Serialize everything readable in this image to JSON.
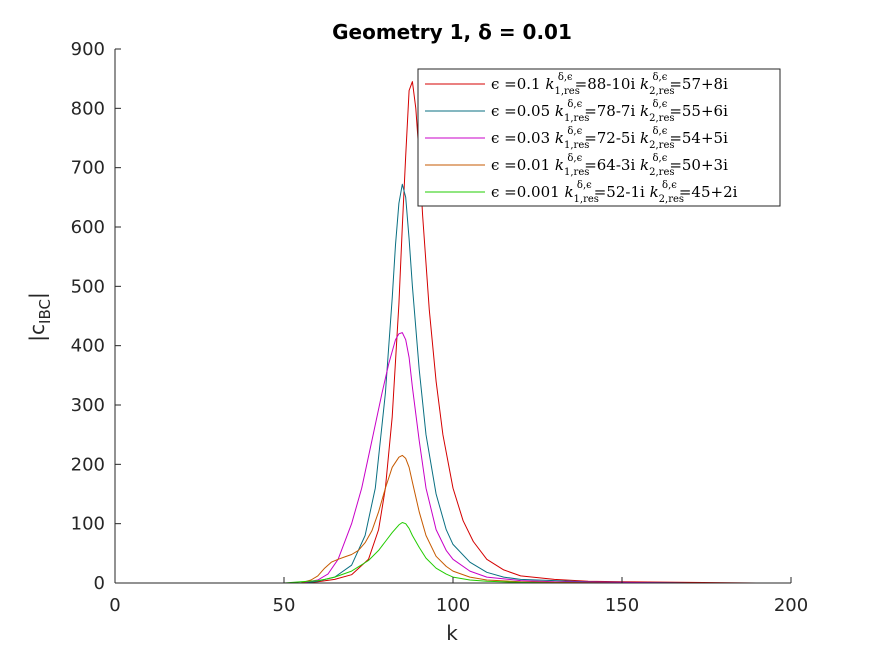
{
  "chart_data": {
    "type": "line",
    "title": "Geometry 1, δ = 0.01",
    "xlabel": "k",
    "ylabel": "|c",
    "ylabel_subscript": "IBC",
    "ylabel_end": "|",
    "xlim": [
      0,
      200
    ],
    "ylim": [
      0,
      900
    ],
    "xticks": [
      0,
      50,
      100,
      150,
      200
    ],
    "yticks": [
      0,
      100,
      200,
      300,
      400,
      500,
      600,
      700,
      800,
      900
    ],
    "grid": false,
    "legend_position": "top-right",
    "series": [
      {
        "name": "ϵ =0.1 k1,res δ,ϵ =88-10i k2,res δ,ϵ =57+8i",
        "legend": {
          "eps": "0.1",
          "k1": "88-10i",
          "k2": "57+8i"
        },
        "color": "#d40000",
        "x": [
          30,
          55,
          60,
          65,
          70,
          75,
          78,
          80,
          82,
          84,
          85,
          86,
          87,
          88,
          89,
          90,
          91,
          93,
          95,
          97,
          100,
          103,
          106,
          110,
          115,
          120,
          130,
          140,
          150,
          170,
          190
        ],
        "y": [
          0,
          0,
          2,
          6,
          14,
          40,
          90,
          160,
          280,
          470,
          600,
          720,
          830,
          845,
          800,
          720,
          620,
          460,
          340,
          250,
          160,
          105,
          70,
          40,
          22,
          12,
          6,
          3,
          2,
          1,
          0
        ]
      },
      {
        "name": "ϵ =0.05 k1,res δ,ϵ =78-7i k2,res δ,ϵ =55+6i",
        "legend": {
          "eps": "0.05",
          "k1": "78-7i",
          "k2": "55+6i"
        },
        "color": "#0a6f82",
        "x": [
          30,
          55,
          60,
          65,
          70,
          74,
          77,
          80,
          82,
          83,
          84,
          85,
          86,
          87,
          88,
          90,
          92,
          95,
          98,
          100,
          105,
          110,
          115,
          120,
          130,
          140,
          150,
          170,
          190
        ],
        "y": [
          0,
          0,
          3,
          10,
          30,
          80,
          160,
          320,
          480,
          570,
          640,
          672,
          650,
          580,
          500,
          360,
          250,
          150,
          90,
          65,
          35,
          18,
          10,
          6,
          4,
          2,
          1,
          0,
          0
        ]
      },
      {
        "name": "ϵ =0.03 k1,res δ,ϵ =72-5i k2,res δ,ϵ =54+5i",
        "legend": {
          "eps": "0.03",
          "k1": "72-5i",
          "k2": "54+5i"
        },
        "color": "#c800c8",
        "x": [
          30,
          55,
          60,
          63,
          66,
          70,
          73,
          76,
          79,
          81,
          83,
          84,
          85,
          86,
          87,
          88,
          90,
          92,
          95,
          98,
          100,
          105,
          110,
          120,
          130,
          150,
          170,
          190
        ],
        "y": [
          0,
          0,
          5,
          15,
          40,
          100,
          160,
          240,
          320,
          370,
          410,
          420,
          422,
          410,
          380,
          330,
          240,
          160,
          90,
          55,
          40,
          20,
          10,
          4,
          2,
          1,
          0,
          0
        ]
      },
      {
        "name": "ϵ =0.01 k1,res δ,ϵ =64-3i k2,res δ,ϵ =50+3i",
        "legend": {
          "eps": "0.01",
          "k1": "64-3i",
          "k2": "50+3i"
        },
        "color": "#c65a00",
        "x": [
          30,
          55,
          58,
          60,
          62,
          64,
          66,
          68,
          70,
          72,
          74,
          76,
          78,
          80,
          82,
          84,
          85,
          86,
          87,
          88,
          90,
          92,
          95,
          98,
          100,
          105,
          110,
          120,
          130,
          150,
          190
        ],
        "y": [
          0,
          0,
          5,
          12,
          25,
          35,
          40,
          44,
          48,
          55,
          68,
          88,
          120,
          160,
          195,
          212,
          215,
          210,
          195,
          170,
          120,
          80,
          45,
          28,
          20,
          10,
          5,
          2,
          1,
          0,
          0
        ]
      },
      {
        "name": "ϵ =0.001 k1,res δ,ϵ =52-1i k2,res δ,ϵ =45+2i",
        "legend": {
          "eps": "0.001",
          "k1": "52-1i",
          "k2": "45+2i"
        },
        "color": "#22cc00",
        "x": [
          30,
          50,
          55,
          60,
          62,
          65,
          70,
          75,
          78,
          80,
          82,
          84,
          85,
          86,
          87,
          88,
          90,
          92,
          95,
          98,
          100,
          105,
          110,
          120,
          130,
          150,
          170,
          190
        ],
        "y": [
          0,
          0,
          2,
          4,
          6,
          10,
          20,
          38,
          55,
          70,
          85,
          98,
          102,
          100,
          92,
          80,
          60,
          42,
          25,
          15,
          10,
          5,
          3,
          1,
          0,
          0,
          0,
          0
        ]
      }
    ]
  }
}
